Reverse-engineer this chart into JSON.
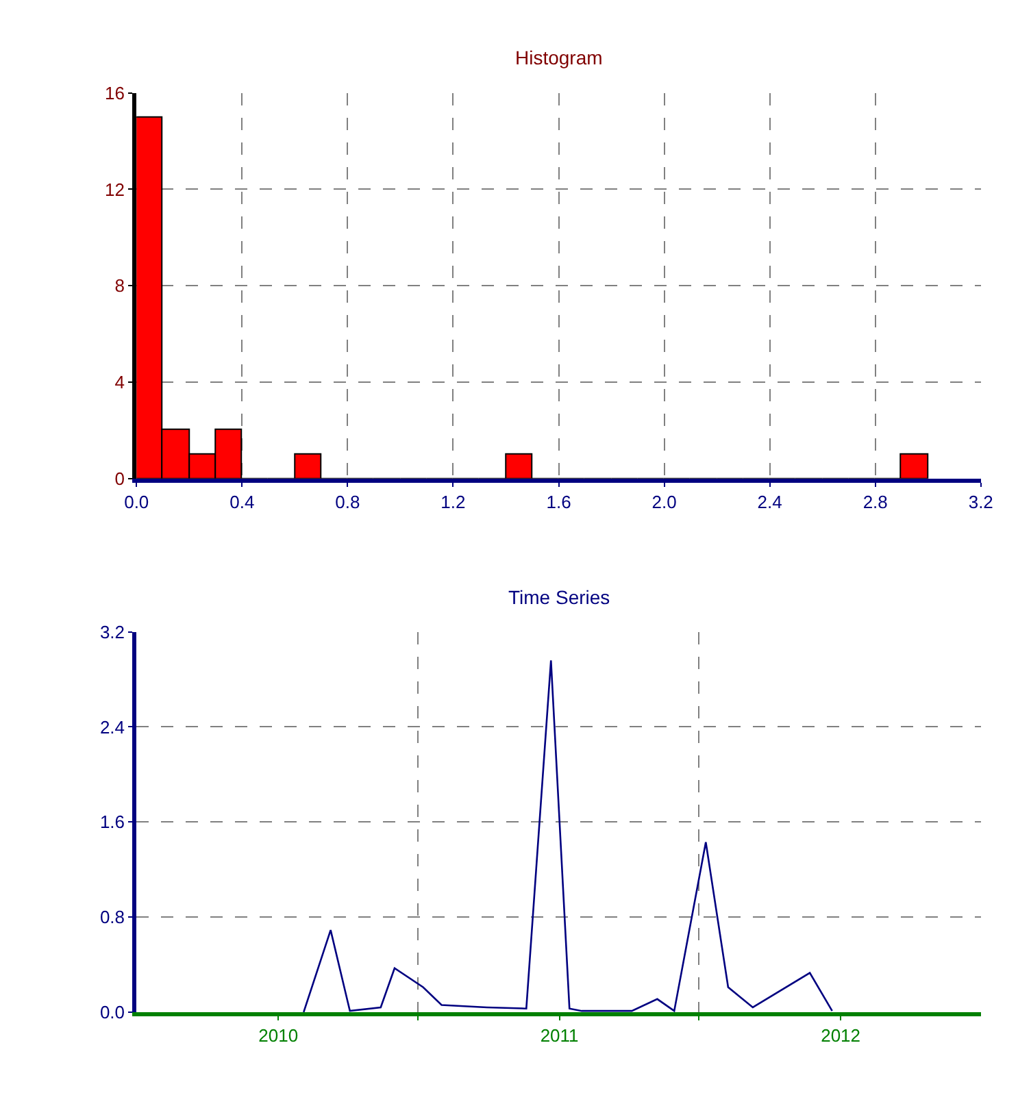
{
  "chart_data": [
    {
      "type": "histogram",
      "title": "Histogram",
      "bins": [
        0.0,
        0.1,
        0.2,
        0.3,
        0.4,
        0.5,
        0.6,
        0.7,
        0.8,
        0.9,
        1.0,
        1.1,
        1.2,
        1.3,
        1.4,
        1.5,
        1.6,
        1.7,
        1.8,
        1.9,
        2.0,
        2.1,
        2.2,
        2.3,
        2.4,
        2.5,
        2.6,
        2.7,
        2.8,
        2.9,
        3.0
      ],
      "values": [
        15,
        2,
        1,
        2,
        0,
        0,
        1,
        0,
        0,
        0,
        0,
        0,
        0,
        0,
        1,
        0,
        0,
        0,
        0,
        0,
        0,
        0,
        0,
        0,
        0,
        0,
        0,
        0,
        0,
        1
      ],
      "color": "#ff0000",
      "xlim": [
        0,
        3.2
      ],
      "xticks": [
        {
          "value": 0,
          "label": "0.0"
        },
        0.4,
        0.8,
        1.2,
        1.6,
        {
          "value": 2,
          "label": "2.0"
        },
        2.4,
        2.8,
        3.2
      ],
      "ylim": [
        0,
        16
      ],
      "yticks": [
        0,
        4,
        8,
        12,
        16
      ],
      "grid": true
    },
    {
      "type": "line",
      "title": "Time Series",
      "x": [
        "2010-02-03",
        "2010-03-10",
        "2010-04-04",
        "2010-05-14",
        "2010-06-01",
        "2010-07-08",
        "2010-08-01",
        "2010-09-29",
        "2010-11-19",
        "2010-12-21",
        "2011-01-14",
        "2011-01-30",
        "2011-04-05",
        "2011-05-08",
        "2011-05-30",
        "2011-07-10",
        "2011-08-08",
        "2011-09-09",
        "2011-11-22",
        "2011-12-21"
      ],
      "series": [
        {
          "color": "#000080",
          "values": [
            0.0,
            0.69,
            0.01,
            0.04,
            0.37,
            0.21,
            0.06,
            0.04,
            0.03,
            2.96,
            0.03,
            0.01,
            0.01,
            0.11,
            0.01,
            1.43,
            0.21,
            0.04,
            0.33,
            0.01
          ]
        }
      ],
      "xlim": [
        "2009-07-01",
        "2012-07-01"
      ],
      "xticks": [
        {
          "value": "2010-01-01",
          "label": "2010"
        },
        {
          "value": "2010-07-01",
          "label": null
        },
        {
          "value": "2011-01-01",
          "label": "2011"
        },
        {
          "value": "2011-07-01",
          "label": null
        },
        {
          "value": "2012-01-01",
          "label": "2012"
        }
      ],
      "ylim": [
        0,
        3.2
      ],
      "yticks": [
        {
          "value": 0,
          "label": "0.0"
        },
        0.8,
        1.6,
        2.4,
        3.2
      ],
      "grid": true,
      "marker": "none",
      "line_style": "solid"
    }
  ]
}
